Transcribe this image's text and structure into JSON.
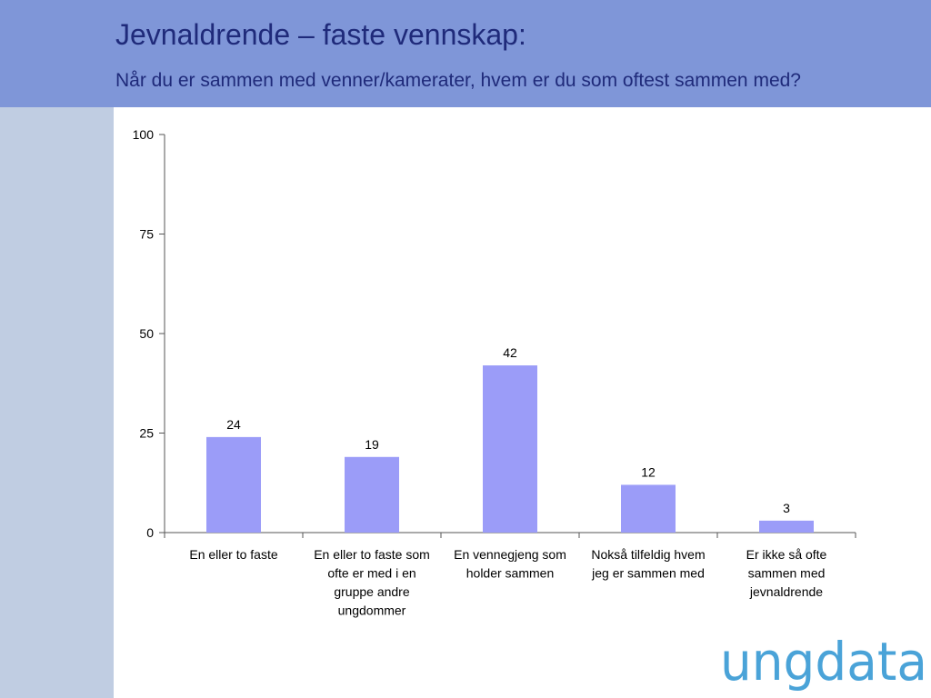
{
  "header": {
    "title": "Jevnaldrende – faste vennskap:",
    "subtitle": "Når du er sammen med venner/kamerater, hvem er du som oftest sammen med?"
  },
  "colors": {
    "header_bg": "#7f96d8",
    "sidebar_bg": "#c0cde2",
    "title_text": "#1f2a7a",
    "bar": "#9b9cf8",
    "logo": "#4aa3d8"
  },
  "logo": {
    "text": "ungdata",
    "icon": "ungdata-logo"
  },
  "chart_data": {
    "type": "bar",
    "categories": [
      [
        "En eller to faste"
      ],
      [
        "En eller to faste som",
        "ofte er med i en",
        "gruppe andre",
        "ungdommer"
      ],
      [
        "En vennegjeng som",
        "holder sammen"
      ],
      [
        "Nokså tilfeldig hvem",
        "jeg er sammen med"
      ],
      [
        "Er ikke så ofte",
        "sammen med",
        "jevnaldrende"
      ]
    ],
    "values": [
      24,
      19,
      42,
      12,
      3
    ],
    "data_labels": [
      "24",
      "19",
      "42",
      "12",
      "3"
    ],
    "yticks": [
      0,
      25,
      50,
      75,
      100
    ],
    "ylim": [
      0,
      100
    ],
    "grid": false,
    "legend": "none"
  }
}
